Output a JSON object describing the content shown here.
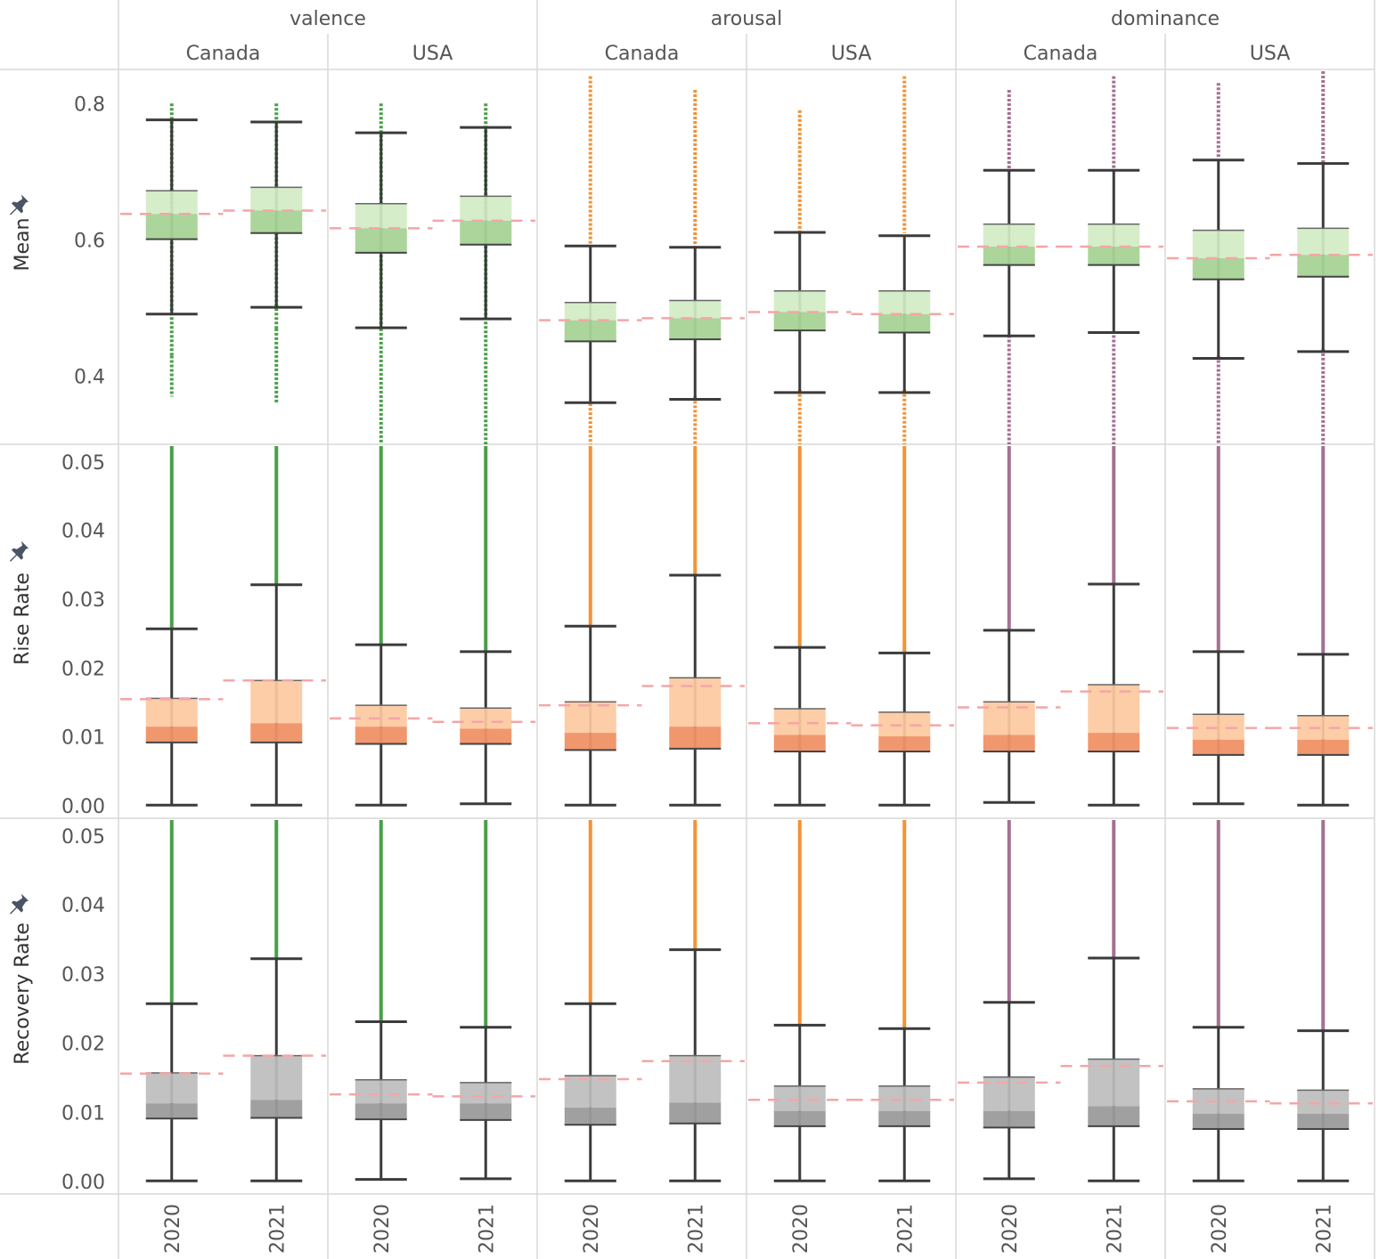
{
  "chart_data": {
    "type": "boxplot",
    "title": "",
    "dimensions": [
      "valence",
      "arousal",
      "dominance"
    ],
    "countries": [
      "Canada",
      "USA"
    ],
    "years": [
      "2020",
      "2021"
    ],
    "dimension_colors": {
      "valence": "#3f9a3f",
      "arousal": "#f28e2b",
      "dominance": "#a06a8e"
    },
    "row_box_colors": {
      "Mean": {
        "upper": "#d3ecc4",
        "lower": "#a6d395"
      },
      "Rise Rate": {
        "upper": "#fcc99f",
        "lower": "#f09166"
      },
      "Recovery Rate": {
        "upper": "#bdbdbd",
        "lower": "#9b9b9b"
      }
    },
    "reference_line_color": "#f4a6a6",
    "rows": [
      {
        "name": "Mean",
        "ylim": [
          0.3,
          0.85
        ],
        "ticks": [
          "0.4",
          "0.6",
          "0.8"
        ],
        "tick_values": [
          0.4,
          0.6,
          0.8
        ],
        "reference_lines": [
          0.638,
          0.643,
          0.617,
          0.628,
          0.482,
          0.485,
          0.494,
          0.491,
          0.59,
          0.59,
          0.573,
          0.578
        ],
        "boxes": [
          {
            "dimension": "valence",
            "country": "Canada",
            "year": "2020",
            "whisker_low": 0.491,
            "q1": 0.601,
            "median": 0.638,
            "q3": 0.672,
            "whisker_high": 0.776,
            "points": [
              [
                0.37,
                0.43
              ],
              [
                0.43,
                0.8
              ]
            ]
          },
          {
            "dimension": "valence",
            "country": "Canada",
            "year": "2021",
            "whisker_low": 0.501,
            "q1": 0.61,
            "median": 0.643,
            "q3": 0.677,
            "whisker_high": 0.773,
            "points": [
              [
                0.36,
                0.47
              ],
              [
                0.47,
                0.8
              ]
            ]
          },
          {
            "dimension": "valence",
            "country": "USA",
            "year": "2020",
            "whisker_low": 0.471,
            "q1": 0.581,
            "median": 0.617,
            "q3": 0.653,
            "whisker_high": 0.757,
            "points": [
              [
                0.3,
                0.47
              ],
              [
                0.47,
                0.8
              ]
            ]
          },
          {
            "dimension": "valence",
            "country": "USA",
            "year": "2021",
            "whisker_low": 0.484,
            "q1": 0.593,
            "median": 0.628,
            "q3": 0.664,
            "whisker_high": 0.765,
            "points": [
              [
                0.3,
                0.48
              ],
              [
                0.48,
                0.8
              ]
            ]
          },
          {
            "dimension": "arousal",
            "country": "Canada",
            "year": "2020",
            "whisker_low": 0.361,
            "q1": 0.451,
            "median": 0.482,
            "q3": 0.508,
            "whisker_high": 0.591,
            "points": [
              [
                0.3,
                0.36
              ],
              [
                0.59,
                0.84
              ]
            ]
          },
          {
            "dimension": "arousal",
            "country": "Canada",
            "year": "2021",
            "whisker_low": 0.366,
            "q1": 0.454,
            "median": 0.485,
            "q3": 0.511,
            "whisker_high": 0.589,
            "points": [
              [
                0.3,
                0.37
              ],
              [
                0.59,
                0.82
              ]
            ]
          },
          {
            "dimension": "arousal",
            "country": "USA",
            "year": "2020",
            "whisker_low": 0.376,
            "q1": 0.467,
            "median": 0.494,
            "q3": 0.525,
            "whisker_high": 0.611,
            "points": [
              [
                0.3,
                0.38
              ],
              [
                0.61,
                0.79
              ]
            ]
          },
          {
            "dimension": "arousal",
            "country": "USA",
            "year": "2021",
            "whisker_low": 0.376,
            "q1": 0.464,
            "median": 0.491,
            "q3": 0.525,
            "whisker_high": 0.606,
            "points": [
              [
                0.3,
                0.38
              ],
              [
                0.61,
                0.84
              ]
            ]
          },
          {
            "dimension": "dominance",
            "country": "Canada",
            "year": "2020",
            "whisker_low": 0.459,
            "q1": 0.563,
            "median": 0.59,
            "q3": 0.623,
            "whisker_high": 0.702,
            "points": [
              [
                0.3,
                0.46
              ],
              [
                0.7,
                0.82
              ]
            ]
          },
          {
            "dimension": "dominance",
            "country": "Canada",
            "year": "2021",
            "whisker_low": 0.464,
            "q1": 0.563,
            "median": 0.59,
            "q3": 0.623,
            "whisker_high": 0.702,
            "points": [
              [
                0.3,
                0.46
              ],
              [
                0.7,
                0.84
              ]
            ]
          },
          {
            "dimension": "dominance",
            "country": "USA",
            "year": "2020",
            "whisker_low": 0.426,
            "q1": 0.542,
            "median": 0.573,
            "q3": 0.614,
            "whisker_high": 0.717,
            "points": [
              [
                0.3,
                0.43
              ],
              [
                0.72,
                0.83
              ]
            ]
          },
          {
            "dimension": "dominance",
            "country": "USA",
            "year": "2021",
            "whisker_low": 0.436,
            "q1": 0.546,
            "median": 0.578,
            "q3": 0.617,
            "whisker_high": 0.712,
            "points": [
              [
                0.3,
                0.44
              ],
              [
                0.71,
                0.85
              ]
            ]
          }
        ]
      },
      {
        "name": "Rise Rate",
        "ylim": [
          -0.0018,
          0.0525
        ],
        "ticks": [
          "0.00",
          "0.01",
          "0.02",
          "0.03",
          "0.04",
          "0.05"
        ],
        "tick_values": [
          0.0,
          0.01,
          0.02,
          0.03,
          0.04,
          0.05
        ],
        "reference_lines": [
          0.0155,
          0.0182,
          0.0127,
          0.0122,
          0.0146,
          0.0174,
          0.012,
          0.0117,
          0.0143,
          0.0166,
          0.0113,
          0.0113
        ],
        "boxes": [
          {
            "dimension": "valence",
            "country": "Canada",
            "year": "2020",
            "whisker_low": 0.0001,
            "q1": 0.0092,
            "median": 0.0115,
            "q3": 0.0156,
            "whisker_high": 0.0257,
            "points": [
              [
                0.0257,
                0.0525
              ]
            ]
          },
          {
            "dimension": "valence",
            "country": "Canada",
            "year": "2021",
            "whisker_low": 0.0001,
            "q1": 0.0092,
            "median": 0.012,
            "q3": 0.0182,
            "whisker_high": 0.0321,
            "points": [
              [
                0.0321,
                0.0525
              ]
            ]
          },
          {
            "dimension": "valence",
            "country": "USA",
            "year": "2020",
            "whisker_low": 0.0001,
            "q1": 0.009,
            "median": 0.0115,
            "q3": 0.0146,
            "whisker_high": 0.0234,
            "points": [
              [
                0.0234,
                0.0525
              ]
            ]
          },
          {
            "dimension": "valence",
            "country": "USA",
            "year": "2021",
            "whisker_low": 0.0003,
            "q1": 0.009,
            "median": 0.0112,
            "q3": 0.0142,
            "whisker_high": 0.0224,
            "points": [
              [
                0.0224,
                0.0525
              ]
            ]
          },
          {
            "dimension": "arousal",
            "country": "Canada",
            "year": "2020",
            "whisker_low": 0.0001,
            "q1": 0.0081,
            "median": 0.0106,
            "q3": 0.0151,
            "whisker_high": 0.0261,
            "points": [
              [
                0.0261,
                0.0525
              ]
            ]
          },
          {
            "dimension": "arousal",
            "country": "Canada",
            "year": "2021",
            "whisker_low": 0.0001,
            "q1": 0.0083,
            "median": 0.0115,
            "q3": 0.0186,
            "whisker_high": 0.0335,
            "points": [
              [
                0.0335,
                0.0525
              ]
            ]
          },
          {
            "dimension": "arousal",
            "country": "USA",
            "year": "2020",
            "whisker_low": 0.0001,
            "q1": 0.0079,
            "median": 0.0103,
            "q3": 0.0141,
            "whisker_high": 0.023,
            "points": [
              [
                0.023,
                0.0525
              ]
            ]
          },
          {
            "dimension": "arousal",
            "country": "USA",
            "year": "2021",
            "whisker_low": 0.0001,
            "q1": 0.0079,
            "median": 0.0101,
            "q3": 0.0136,
            "whisker_high": 0.0222,
            "points": [
              [
                0.0222,
                0.0525
              ]
            ]
          },
          {
            "dimension": "dominance",
            "country": "Canada",
            "year": "2020",
            "whisker_low": 0.0005,
            "q1": 0.0079,
            "median": 0.0103,
            "q3": 0.0151,
            "whisker_high": 0.0255,
            "points": [
              [
                0.0255,
                0.0525
              ]
            ]
          },
          {
            "dimension": "dominance",
            "country": "Canada",
            "year": "2021",
            "whisker_low": 0.0001,
            "q1": 0.0079,
            "median": 0.0106,
            "q3": 0.0176,
            "whisker_high": 0.0322,
            "points": [
              [
                0.0322,
                0.0525
              ]
            ]
          },
          {
            "dimension": "dominance",
            "country": "USA",
            "year": "2020",
            "whisker_low": 0.0003,
            "q1": 0.0074,
            "median": 0.0096,
            "q3": 0.0133,
            "whisker_high": 0.0224,
            "points": [
              [
                0.0224,
                0.0525
              ]
            ]
          },
          {
            "dimension": "dominance",
            "country": "USA",
            "year": "2021",
            "whisker_low": 0.0001,
            "q1": 0.0074,
            "median": 0.0096,
            "q3": 0.0131,
            "whisker_high": 0.022,
            "points": [
              [
                0.022,
                0.0525
              ]
            ]
          }
        ]
      },
      {
        "name": "Recovery Rate",
        "ylim": [
          -0.0018,
          0.0525
        ],
        "ticks": [
          "0.00",
          "0.01",
          "0.02",
          "0.03",
          "0.04",
          "0.05"
        ],
        "tick_values": [
          0.0,
          0.01,
          0.02,
          0.03,
          0.04,
          0.05
        ],
        "reference_lines": [
          0.0156,
          0.0182,
          0.0126,
          0.0123,
          0.0148,
          0.0174,
          0.0118,
          0.0118,
          0.0143,
          0.0167,
          0.0116,
          0.0113
        ],
        "boxes": [
          {
            "dimension": "valence",
            "country": "Canada",
            "year": "2020",
            "whisker_low": 0.0001,
            "q1": 0.0091,
            "median": 0.0113,
            "q3": 0.0157,
            "whisker_high": 0.0257,
            "points": [
              [
                0.0257,
                0.0525
              ]
            ]
          },
          {
            "dimension": "valence",
            "country": "Canada",
            "year": "2021",
            "whisker_low": 0.0001,
            "q1": 0.0092,
            "median": 0.0118,
            "q3": 0.0182,
            "whisker_high": 0.0322,
            "points": [
              [
                0.0322,
                0.0525
              ]
            ]
          },
          {
            "dimension": "valence",
            "country": "USA",
            "year": "2020",
            "whisker_low": 0.0003,
            "q1": 0.009,
            "median": 0.0113,
            "q3": 0.0147,
            "whisker_high": 0.0231,
            "points": [
              [
                0.0231,
                0.0525
              ]
            ]
          },
          {
            "dimension": "valence",
            "country": "USA",
            "year": "2021",
            "whisker_low": 0.0004,
            "q1": 0.0089,
            "median": 0.0113,
            "q3": 0.0143,
            "whisker_high": 0.0223,
            "points": [
              [
                0.0223,
                0.0525
              ]
            ]
          },
          {
            "dimension": "arousal",
            "country": "Canada",
            "year": "2020",
            "whisker_low": 0.0001,
            "q1": 0.0082,
            "median": 0.0107,
            "q3": 0.0153,
            "whisker_high": 0.0257,
            "points": [
              [
                0.0257,
                0.0525
              ]
            ]
          },
          {
            "dimension": "arousal",
            "country": "Canada",
            "year": "2021",
            "whisker_low": 0.0001,
            "q1": 0.0084,
            "median": 0.0114,
            "q3": 0.0182,
            "whisker_high": 0.0335,
            "points": [
              [
                0.0335,
                0.0525
              ]
            ]
          },
          {
            "dimension": "arousal",
            "country": "USA",
            "year": "2020",
            "whisker_low": 0.0001,
            "q1": 0.008,
            "median": 0.0102,
            "q3": 0.0138,
            "whisker_high": 0.0226,
            "points": [
              [
                0.0226,
                0.0525
              ]
            ]
          },
          {
            "dimension": "arousal",
            "country": "USA",
            "year": "2021",
            "whisker_low": 0.0001,
            "q1": 0.008,
            "median": 0.0102,
            "q3": 0.0138,
            "whisker_high": 0.0221,
            "points": [
              [
                0.0221,
                0.0525
              ]
            ]
          },
          {
            "dimension": "dominance",
            "country": "Canada",
            "year": "2020",
            "whisker_low": 0.0004,
            "q1": 0.0078,
            "median": 0.0102,
            "q3": 0.0151,
            "whisker_high": 0.0259,
            "points": [
              [
                0.0259,
                0.0525
              ]
            ]
          },
          {
            "dimension": "dominance",
            "country": "Canada",
            "year": "2021",
            "whisker_low": 0.0001,
            "q1": 0.008,
            "median": 0.0109,
            "q3": 0.0177,
            "whisker_high": 0.0323,
            "points": [
              [
                0.0323,
                0.0525
              ]
            ]
          },
          {
            "dimension": "dominance",
            "country": "USA",
            "year": "2020",
            "whisker_low": 0.0001,
            "q1": 0.0076,
            "median": 0.0098,
            "q3": 0.0134,
            "whisker_high": 0.0223,
            "points": [
              [
                0.0223,
                0.0525
              ]
            ]
          },
          {
            "dimension": "dominance",
            "country": "USA",
            "year": "2021",
            "whisker_low": 0.0001,
            "q1": 0.0076,
            "median": 0.0098,
            "q3": 0.0132,
            "whisker_high": 0.0218,
            "points": [
              [
                0.0218,
                0.0525
              ]
            ]
          }
        ]
      }
    ],
    "pin_icon": "pin-icon"
  }
}
